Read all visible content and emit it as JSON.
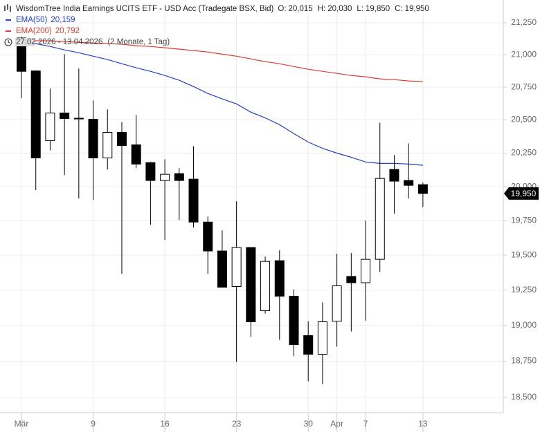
{
  "chart_data": {
    "type": "candlestick",
    "title": "WisdomTree India Earnings UCITS ETF - USD Acc (Tradegate BSX, Bid)",
    "legend_ohlc": [
      {
        "name": "O:",
        "value": 20015,
        "label": "20,015"
      },
      {
        "name": "H:",
        "value": 20030,
        "label": "20,030"
      },
      {
        "name": "L:",
        "value": 19850,
        "label": "19,850"
      },
      {
        "name": "C:",
        "value": 19950,
        "label": "19,950"
      }
    ],
    "date_range": "27.02.2026 - 13.04.2026",
    "period": "(2 Monate, 1 Tag)",
    "categories": [
      "Mär",
      null,
      null,
      null,
      null,
      "9",
      null,
      null,
      null,
      null,
      "16",
      null,
      null,
      null,
      null,
      "23",
      null,
      null,
      null,
      null,
      "30",
      null,
      "Apr",
      null,
      "7",
      null,
      null,
      null,
      "13"
    ],
    "open": [
      21131,
      20875,
      20344,
      20553,
      20513,
      20505,
      20214,
      20406,
      20312,
      20179,
      20046,
      20097,
      20056,
      19740,
      19530,
      19275,
      19555,
      19103,
      19460,
      19206,
      18928,
      18798,
      19029,
      19347,
      19302,
      19470,
      20128,
      20046,
      20015
    ],
    "high": [
      21140,
      20880,
      20739,
      21005,
      20894,
      20649,
      20580,
      20484,
      20537,
      20184,
      20204,
      20138,
      20302,
      19781,
      19680,
      19893,
      19555,
      19490,
      19535,
      19255,
      19029,
      19162,
      19510,
      19515,
      19750,
      20479,
      20235,
      20323,
      20030
    ],
    "low": [
      20665,
      19975,
      20271,
      20087,
      19913,
      19903,
      20128,
      19365,
      20138,
      19720,
      19610,
      19755,
      19700,
      19365,
      19270,
      18745,
      18918,
      19083,
      18899,
      18784,
      18610,
      18592,
      18851,
      18957,
      19034,
      19380,
      19801,
      19913,
      19850
    ],
    "close": [
      20872,
      20214,
      20553,
      20511,
      20508,
      20214,
      20406,
      20307,
      20168,
      20046,
      20092,
      20046,
      19740,
      19530,
      19270,
      19555,
      19025,
      19455,
      19206,
      18865,
      18798,
      19025,
      19280,
      19302,
      19470,
      20061,
      20041,
      20010,
      19950
    ],
    "up_color": "#ffffff",
    "down_color": "#000000",
    "series": [
      {
        "name": "EMA(50)",
        "color": "#1f3fd0",
        "last": 20159,
        "last_label": "20,159",
        "values": [
          21103,
          21087,
          21065,
          21038,
          21016,
          20989,
          20963,
          20931,
          20899,
          20872,
          20840,
          20803,
          20755,
          20702,
          20660,
          20622,
          20559,
          20516,
          20464,
          20396,
          20333,
          20286,
          20250,
          20219,
          20184,
          20173,
          20173,
          20168,
          20159
        ]
      },
      {
        "name": "EMA(200)",
        "color": "#e03a2f",
        "last": 20792,
        "last_label": "20,792",
        "values": [
          21114,
          21109,
          21109,
          21103,
          21098,
          21092,
          21087,
          21082,
          21071,
          21065,
          21055,
          21044,
          21033,
          21022,
          21005,
          20989,
          20968,
          20947,
          20931,
          20909,
          20888,
          20872,
          20856,
          20840,
          20830,
          20814,
          20808,
          20798,
          20792
        ]
      }
    ],
    "log_scale": true,
    "ylim": [
      18500,
      21250
    ],
    "yticks": [
      {
        "value": 18500,
        "label": "18,500"
      },
      {
        "value": 18750,
        "label": "18,750"
      },
      {
        "value": 19000,
        "label": "19,000"
      },
      {
        "value": 19250,
        "label": "19,250"
      },
      {
        "value": 19500,
        "label": "19,500"
      },
      {
        "value": 19750,
        "label": "19,750"
      },
      {
        "value": 20000,
        "label": "20,000"
      },
      {
        "value": 20250,
        "label": "20,250"
      },
      {
        "value": 20500,
        "label": "20,500"
      },
      {
        "value": 20750,
        "label": "20,750"
      },
      {
        "value": 21000,
        "label": "21,000"
      },
      {
        "value": 21250,
        "label": "21,250"
      }
    ],
    "grid": true
  }
}
